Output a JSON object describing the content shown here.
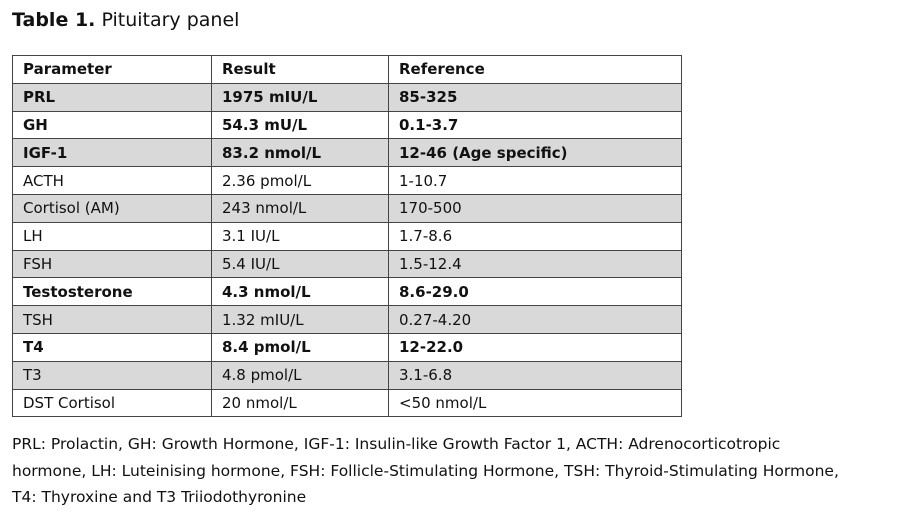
{
  "title": {
    "label": "Table 1.",
    "text": "Pituitary panel"
  },
  "table": {
    "header": [
      "Parameter",
      "Result",
      "Reference"
    ],
    "rows": [
      {
        "cells": [
          "PRL",
          "1975 mIU/L",
          "85-325"
        ],
        "bold": true
      },
      {
        "cells": [
          "GH",
          "54.3 mU/L",
          "0.1-3.7"
        ],
        "bold": true
      },
      {
        "cells": [
          "IGF-1",
          "83.2 nmol/L",
          "12-46 (Age specific)"
        ],
        "bold": true
      },
      {
        "cells": [
          "ACTH",
          "2.36 pmol/L",
          "1-10.7"
        ],
        "bold": false
      },
      {
        "cells": [
          "Cortisol (AM)",
          "243 nmol/L",
          "170-500"
        ],
        "bold": false
      },
      {
        "cells": [
          "LH",
          "3.1 IU/L",
          "1.7-8.6"
        ],
        "bold": false
      },
      {
        "cells": [
          "FSH",
          "5.4 IU/L",
          "1.5-12.4"
        ],
        "bold": false
      },
      {
        "cells": [
          "Testosterone",
          "4.3 nmol/L",
          "8.6-29.0"
        ],
        "bold": true
      },
      {
        "cells": [
          "TSH",
          "1.32 mIU/L",
          "0.27-4.20"
        ],
        "bold": false
      },
      {
        "cells": [
          "T4",
          "8.4 pmol/L",
          "12-22.0"
        ],
        "bold": true
      },
      {
        "cells": [
          "T3",
          "4.8 pmol/L",
          "3.1-6.8"
        ],
        "bold": false
      },
      {
        "cells": [
          "DST Cortisol",
          "20 nmol/L",
          "<50 nmol/L"
        ],
        "bold": false
      }
    ]
  },
  "footnote": [
    "PRL: Prolactin, GH: Growth Hormone, IGF-1: Insulin-like Growth Factor 1, ACTH: Adrenocorticotropic",
    "hormone, LH: Luteinising hormone, FSH: Follicle-Stimulating Hormone, TSH: Thyroid-Stimulating Hormone,",
    "T4: Thyroxine and T3 Triiodothyronine"
  ]
}
